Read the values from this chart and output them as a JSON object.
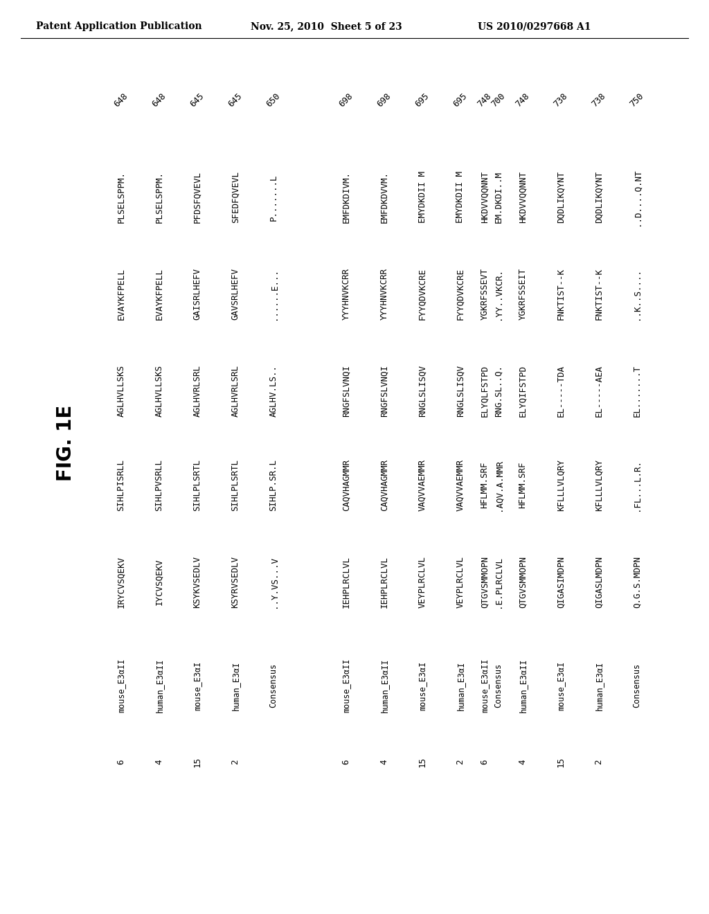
{
  "header_left": "Patent Application Publication",
  "header_mid": "Nov. 25, 2010  Sheet 5 of 23",
  "header_right": "US 2010/0297668 A1",
  "fig_label": "FIG. 1E",
  "blocks": [
    {
      "end_nums": [
        "648",
        "648",
        "645",
        "645",
        "650"
      ],
      "rows": [
        {
          "num": "6",
          "name": "mouse_E3αII",
          "seq1": "IRYCVSQEKV",
          "seq2": "SIHLPISRLL",
          "seq3": "AGLHVLLSKS",
          "seq4": "EVAYKFPELL",
          "seq5": "PLSELSPPM."
        },
        {
          "num": "4",
          "name": "human_E3αII",
          "seq1": "IYCVSQEKV",
          "seq2": "SIHLPVSRLL",
          "seq3": "AGLHVLLSKS",
          "seq4": "EVAYKFPELL",
          "seq5": "PLSELSPPM."
        },
        {
          "num": "15",
          "name": "mouse_E3αI",
          "seq1": "KSYKVSEDLV",
          "seq2": "SIHLPLSRTL",
          "seq3": "AGLHVRLSRL",
          "seq4": "GAISRLHEFV",
          "seq5": "PFDSFQVEVL"
        },
        {
          "num": "2",
          "name": "human_E3αI",
          "seq1": "KSYRVSEDLV",
          "seq2": "SIHLPLSRTL",
          "seq3": "AGLHVRLSRL",
          "seq4": "GAVSRLHEFV",
          "seq5": "SFEDFQVEVL"
        },
        {
          "num": "",
          "name": "Consensus",
          "seq1": "..Y.VS...V",
          "seq2": "SIHLP.SR.L",
          "seq3": "AGLHV.LS..",
          "seq4": "......E...",
          "seq5": "P.......L"
        }
      ]
    },
    {
      "end_nums": [
        "698",
        "698",
        "695",
        "695",
        "700"
      ],
      "rows": [
        {
          "num": "6",
          "name": "mouse_E3αII",
          "seq1": "IEHPLRCLVL",
          "seq2": "CAQVHAGMMR",
          "seq3": "RNGFSLVNQI",
          "seq4": "YYYHNVKCRR",
          "seq5": "EMFDKDIVM."
        },
        {
          "num": "4",
          "name": "human_E3αII",
          "seq1": "IEHPLRCLVL",
          "seq2": "CAQVHAGMMR",
          "seq3": "RNGFSLVNQI",
          "seq4": "YYYHNVKCRR",
          "seq5": "EMFDKDVVM."
        },
        {
          "num": "15",
          "name": "mouse_E3αI",
          "seq1": "VEYPLRCLVL",
          "seq2": "VAQVVAEMMR",
          "seq3": "RNGLSLISQV",
          "seq4": "FYYQDVKCRE",
          "seq5": "EMYDKDII M"
        },
        {
          "num": "2",
          "name": "human_E3αI",
          "seq1": "VEYPLRCLVL",
          "seq2": "VAQVVAEMMR",
          "seq3": "RNGLSLISQV",
          "seq4": "FYYQDVKCRE",
          "seq5": "EMYDKDII M"
        },
        {
          "num": "",
          "name": "Consensus",
          "seq1": ".E.PLRCLVL",
          "seq2": ".AQV.A.MMR",
          "seq3": "RNG.SL..Q.",
          "seq4": ".YY..VKCR.",
          "seq5": "EM.DKDI..M"
        }
      ]
    },
    {
      "end_nums": [
        "748",
        "748",
        "738",
        "738",
        "750"
      ],
      "rows": [
        {
          "num": "6",
          "name": "mouse_E3αII",
          "seq1": "QTGVSMMOPN",
          "seq2": "HFLMM.SRF",
          "seq3": "ELYQLFSTPD",
          "seq4": "YGKRFSSEVT",
          "seq5": "HKDVVQQNNT"
        },
        {
          "num": "4",
          "name": "human_E3αII",
          "seq1": "QTGVSMMOPN",
          "seq2": "HFLMM.SRF",
          "seq3": "ELYQIFSTPD",
          "seq4": "YGKRFSSEIT",
          "seq5": "HKDVVQQNNT"
        },
        {
          "num": "15",
          "name": "mouse_E3αI",
          "seq1": "QIGASIMDPN",
          "seq2": "KFLLLVLQRY",
          "seq3": "EL-----TDA",
          "seq4": "FNKTIST--K",
          "seq5": "DQDLIKQYNT"
        },
        {
          "num": "2",
          "name": "human_E3αI",
          "seq1": "QIGASLMDPN",
          "seq2": "KFLLLVLQRY",
          "seq3": "EL-----AEA",
          "seq4": "FNKTIST--K",
          "seq5": "DQDLIKQYNT"
        },
        {
          "num": "",
          "name": "Consensus",
          "seq1": "Q.G.S.MDPN",
          "seq2": ".FL...L.R.",
          "seq3": "EL.......T",
          "seq4": "..K..S....",
          "seq5": "..D....Q.NT"
        }
      ]
    }
  ],
  "bg_color": "#ffffff",
  "text_color": "#000000",
  "header_fontsize": 10,
  "seq_fontsize": 9,
  "name_fontsize": 8.5,
  "num_fontsize": 9,
  "fig_fontsize": 20,
  "endnum_fontsize": 9
}
